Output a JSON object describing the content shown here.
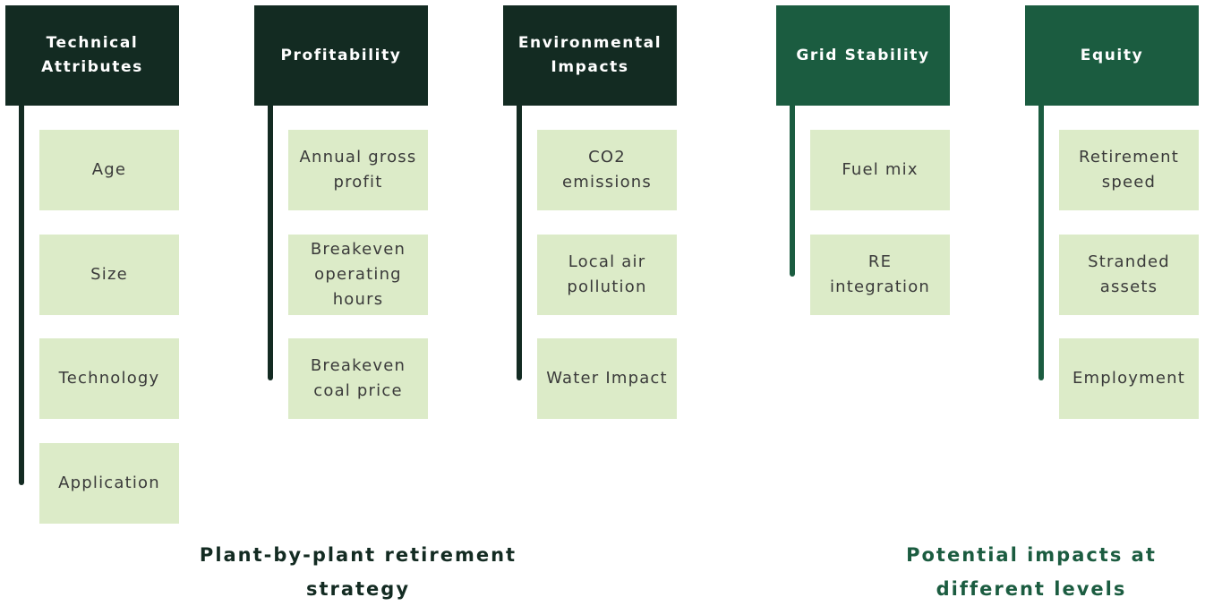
{
  "sections": [
    {
      "label": "Plant-by-plant retirement strategy",
      "groups": [
        {
          "title": "Technical Attributes",
          "items": [
            "Age",
            "Size",
            "Technology",
            "Application"
          ]
        },
        {
          "title": "Profitability",
          "items": [
            "Annual gross profit",
            "Breakeven operating hours",
            "Breakeven coal price"
          ]
        },
        {
          "title": "Environmental Impacts",
          "items": [
            "CO2 emissions",
            "Local air pollution",
            "Water Impact"
          ]
        }
      ]
    },
    {
      "label": "Potential impacts at different levels",
      "groups": [
        {
          "title": "Grid Stability",
          "items": [
            "Fuel mix",
            "RE integration"
          ]
        },
        {
          "title": "Equity",
          "items": [
            "Retirement speed",
            "Stranded assets",
            "Employment"
          ]
        }
      ]
    }
  ]
}
